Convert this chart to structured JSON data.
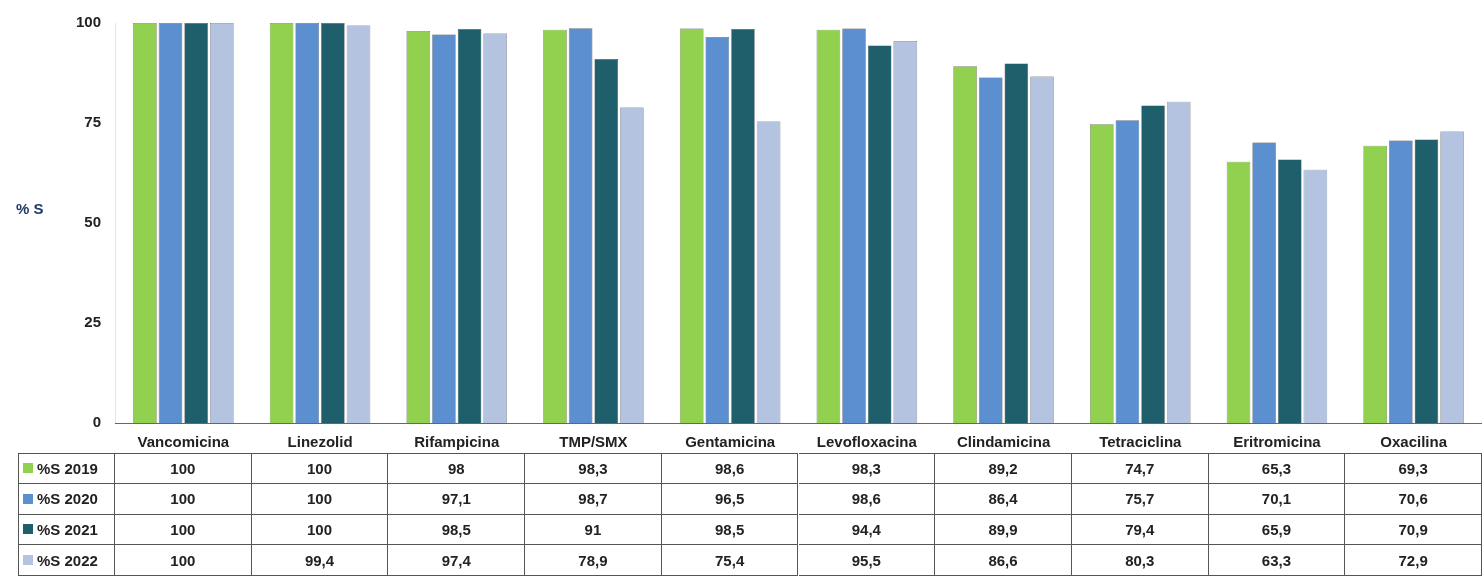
{
  "chart_data": {
    "type": "bar",
    "ylabel": "% S",
    "categories": [
      "Vancomicina",
      "Linezolid",
      "Rifampicina",
      "TMP/SMX",
      "Gentamicina",
      "Levofloxacina",
      "Clindamicina",
      "Tetraciclina",
      "Eritromicina",
      "Oxacilina"
    ],
    "series": [
      {
        "name": "%S 2019",
        "color": "#92d050",
        "values": [
          100,
          100,
          98,
          98.3,
          98.6,
          98.3,
          89.2,
          74.7,
          65.3,
          69.3
        ],
        "value_labels": [
          "100",
          "100",
          "98",
          "98,3",
          "98,6",
          "98,3",
          "89,2",
          "74,7",
          "65,3",
          "69,3"
        ]
      },
      {
        "name": "%S 2020",
        "color": "#5b8fd0",
        "values": [
          100,
          100,
          97.1,
          98.7,
          96.5,
          98.6,
          86.4,
          75.7,
          70.1,
          70.6
        ],
        "value_labels": [
          "100",
          "100",
          "97,1",
          "98,7",
          "96,5",
          "98,6",
          "86,4",
          "75,7",
          "70,1",
          "70,6"
        ]
      },
      {
        "name": "%S 2021",
        "color": "#1f5f6b",
        "values": [
          100,
          100,
          98.5,
          91,
          98.5,
          94.4,
          89.9,
          79.4,
          65.9,
          70.9
        ],
        "value_labels": [
          "100",
          "100",
          "98,5",
          "91",
          "98,5",
          "94,4",
          "89,9",
          "79,4",
          "65,9",
          "70,9"
        ]
      },
      {
        "name": "%S 2022",
        "color": "#b4c4e0",
        "values": [
          100,
          99.4,
          97.4,
          78.9,
          75.4,
          95.5,
          86.6,
          80.3,
          63.3,
          72.9
        ],
        "value_labels": [
          "100",
          "99,4",
          "97,4",
          "78,9",
          "75,4",
          "95,5",
          "86,6",
          "80,3",
          "63,3",
          "72,9"
        ]
      }
    ],
    "ylim": [
      0,
      100
    ],
    "yticks": [
      0,
      25,
      50,
      75,
      100
    ],
    "grid": false,
    "legend": "bottom"
  }
}
